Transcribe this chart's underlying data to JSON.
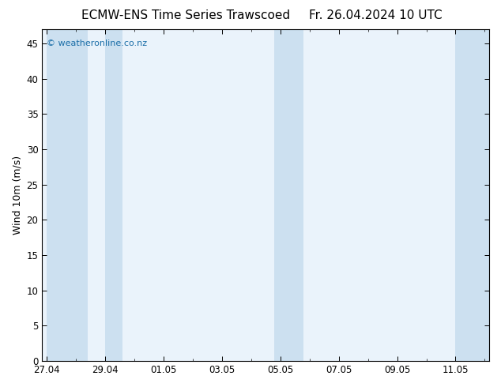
{
  "title_left": "ECMW-ENS Time Series Trawscoed",
  "title_right": "Fr. 26.04.2024 10 UTC",
  "ylabel": "Wind 10m (m/s)",
  "watermark": "© weatheronline.co.nz",
  "ylim": [
    0,
    47
  ],
  "yticks": [
    0,
    5,
    10,
    15,
    20,
    25,
    30,
    35,
    40,
    45
  ],
  "background_color": "#ffffff",
  "plot_bg_color": "#eaf3fb",
  "shaded_band_color": "#cce0f0",
  "shaded_bands": [
    [
      0.0,
      1.4
    ],
    [
      2.0,
      2.6
    ],
    [
      7.8,
      8.8
    ],
    [
      14.0,
      15.5
    ]
  ],
  "xtick_labels": [
    "27.04",
    "29.04",
    "01.05",
    "03.05",
    "05.05",
    "07.05",
    "09.05",
    "11.05"
  ],
  "xtick_positions": [
    0,
    2,
    4,
    6,
    8,
    10,
    12,
    14
  ],
  "xlim": [
    -0.15,
    15.15
  ],
  "title_fontsize": 11,
  "tick_fontsize": 8.5,
  "ylabel_fontsize": 9,
  "watermark_color": "#1a6ea8",
  "watermark_fontsize": 8
}
